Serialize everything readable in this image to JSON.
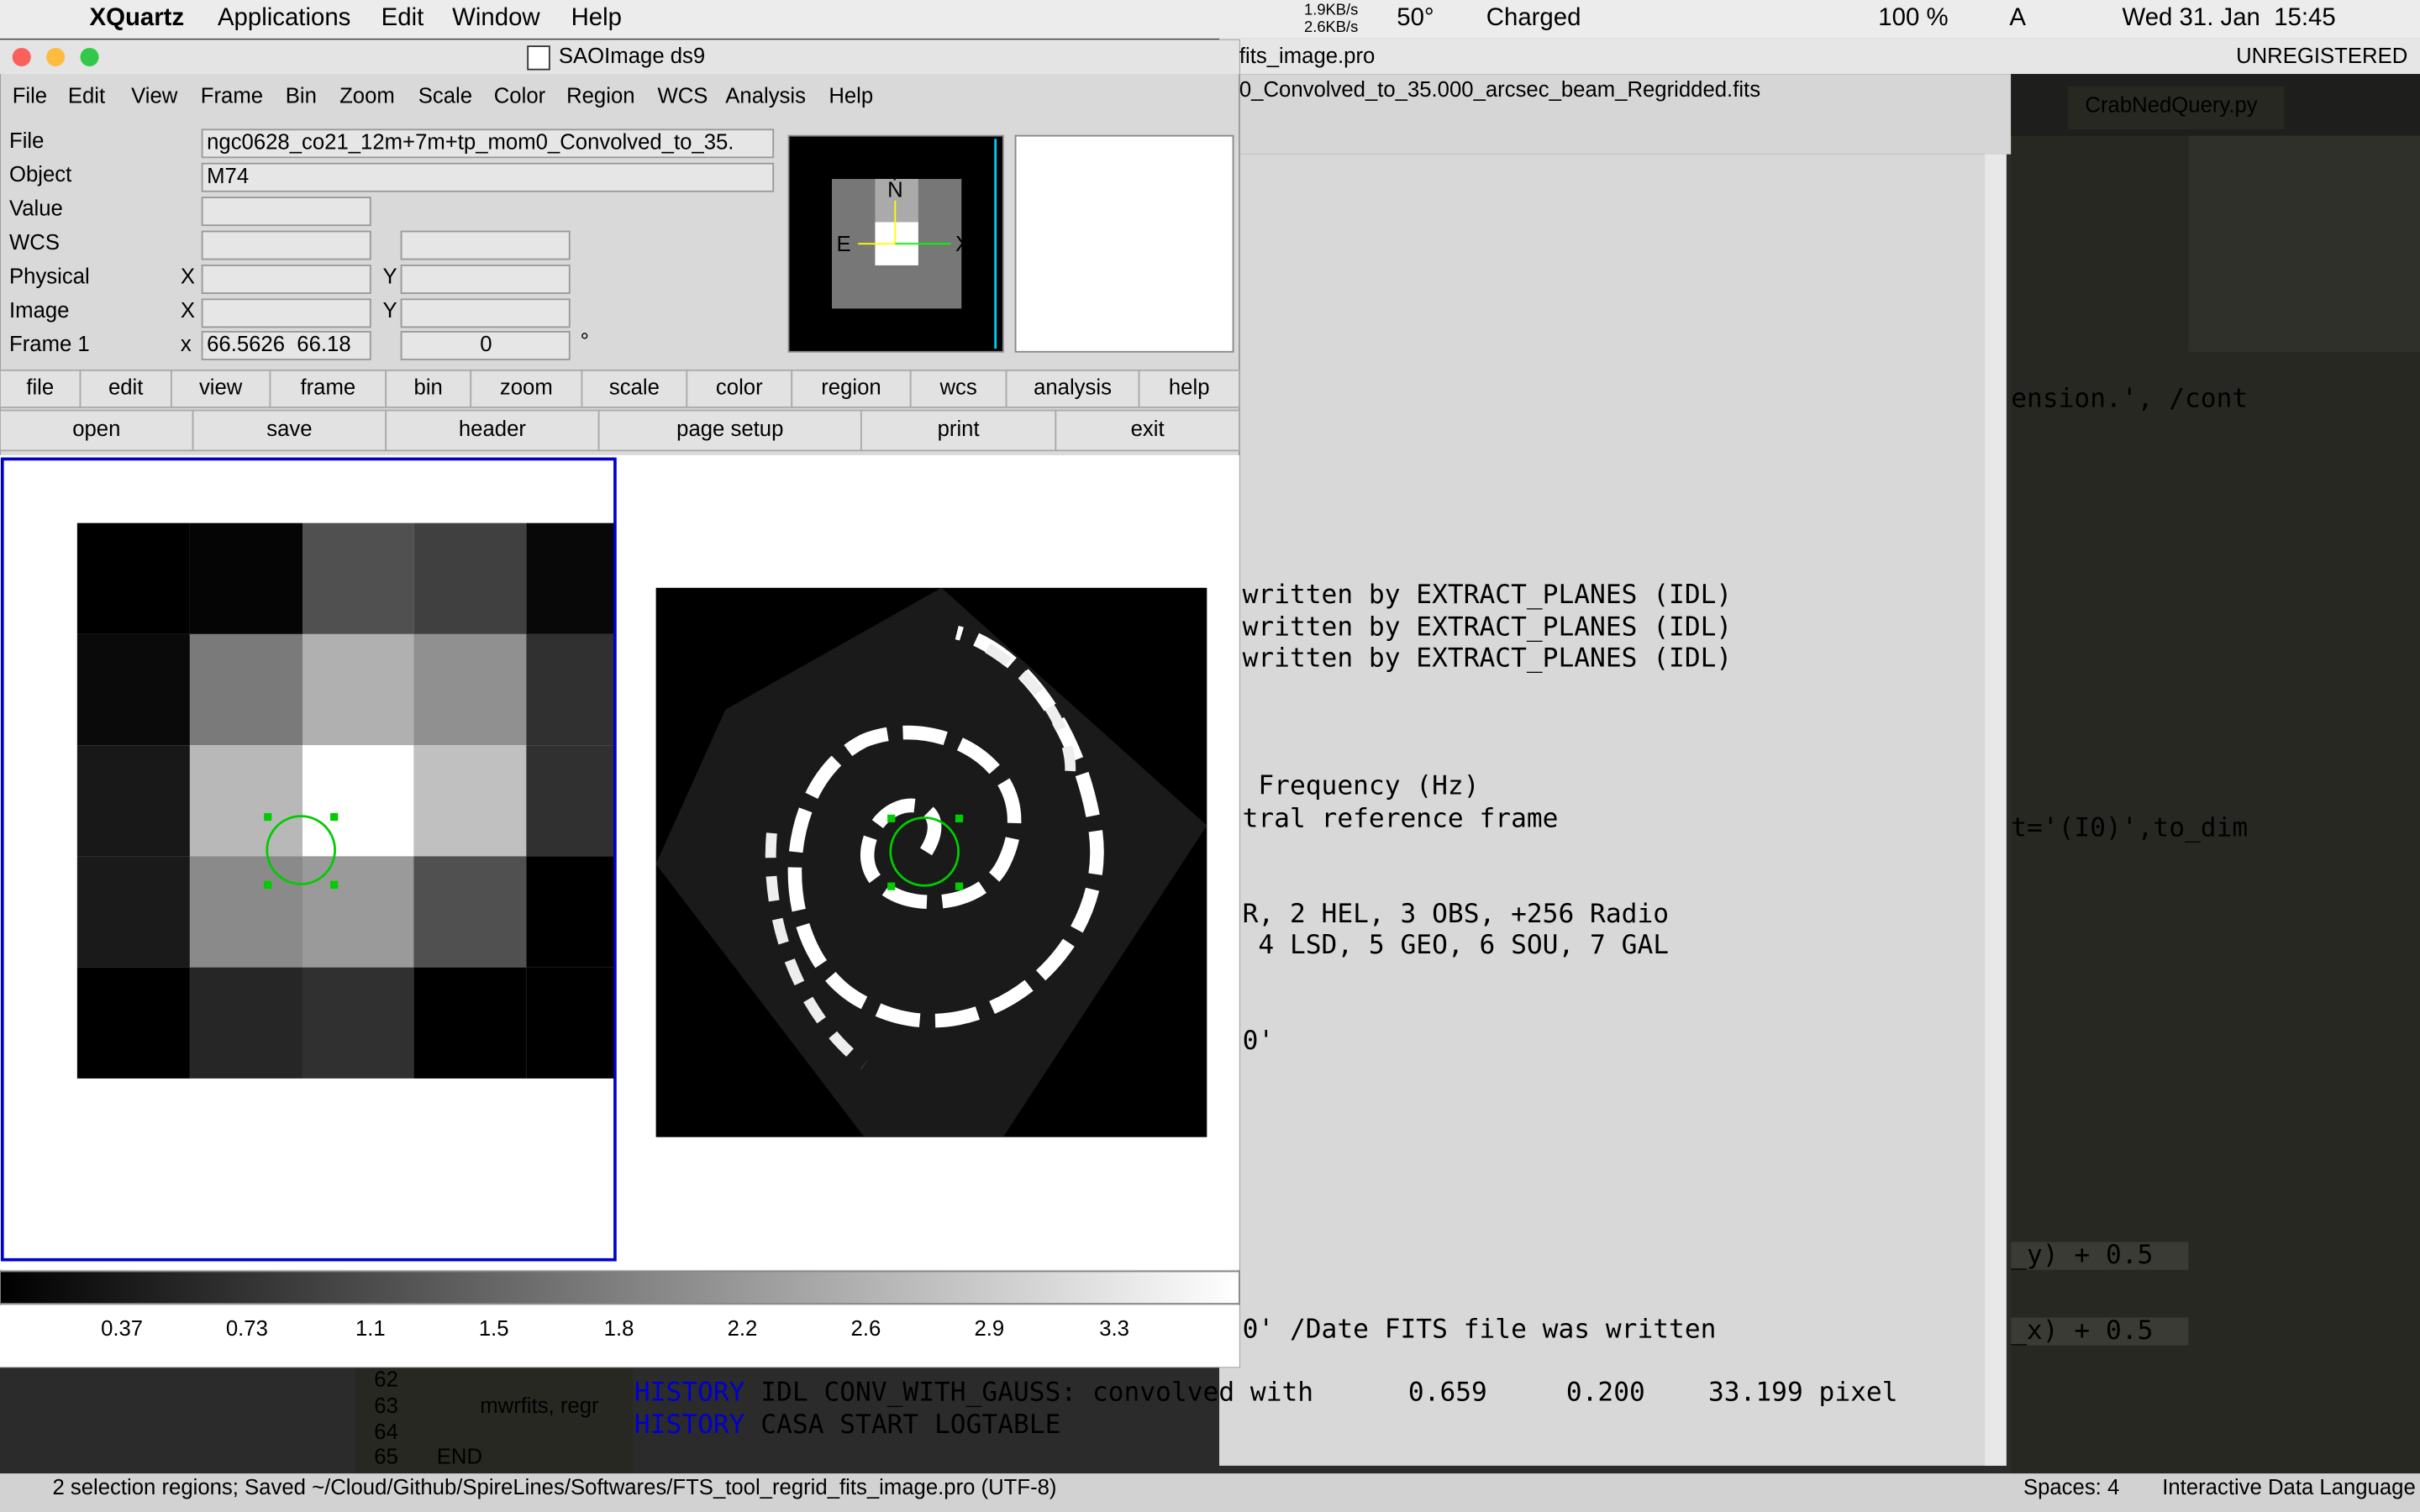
{
  "menubar": {
    "app": "XQuartz",
    "menus": [
      "Applications",
      "Edit",
      "Window",
      "Help"
    ],
    "net_up": "1.9KB/s",
    "net_down": "2.6KB/s",
    "temperature": "50°",
    "battery_status": "Charged",
    "battery": "100 %",
    "input": "A",
    "clock": "Wed 31. Jan  15:45"
  },
  "ds9": {
    "title": "SAOImage ds9",
    "menus": [
      "File",
      "Edit",
      "View",
      "Frame",
      "Bin",
      "Zoom",
      "Scale",
      "Color",
      "Region",
      "WCS",
      "Analysis",
      "Help"
    ],
    "labels": [
      "File",
      "Object",
      "Value",
      "WCS",
      "Physical",
      "Image",
      "Frame 1"
    ],
    "file": "ngc0628_co21_12m+7m+tp_mom0_Convolved_to_35.",
    "object": "M74",
    "axis_x": "X",
    "axis_y": "Y",
    "frame_axis": "x",
    "frame_coords": "66.5626  66.18",
    "frame_angle": "0",
    "degree": "°",
    "panner": {
      "north": "N",
      "east": "E",
      "x": "X",
      "y": "Y"
    },
    "buttons": [
      "file",
      "edit",
      "view",
      "frame",
      "bin",
      "zoom",
      "scale",
      "color",
      "region",
      "wcs",
      "analysis",
      "help"
    ],
    "file_buttons": [
      "open",
      "save",
      "header",
      "page setup",
      "print",
      "exit"
    ],
    "colorbar_ticks": [
      "0.37",
      "0.73",
      "1.1",
      "1.5",
      "1.8",
      "2.2",
      "2.6",
      "2.9",
      "3.3"
    ]
  },
  "editor": {
    "tab_title": "fits_image.pro",
    "license": "UNREGISTERED",
    "header_tab": "0_Convolved_to_35.000_arcsec_beam_Regridded.fits",
    "lines": [
      "written by EXTRACT_PLANES (IDL)",
      "written by EXTRACT_PLANES (IDL)",
      "written by EXTRACT_PLANES (IDL)",
      " Frequency (Hz)",
      "tral reference frame",
      "R, 2 HEL, 3 OBS, +256 Radio",
      " 4 LSD, 5 GEO, 6 SOU, 7 GAL",
      "0'",
      "0' /Date FITS file was written"
    ],
    "history": [
      {
        "keyword": "HISTORY",
        "text": " IDL CONV_WITH_GAUSS: convolved with      0.659     0.200    33.199 pixel"
      },
      {
        "keyword": "HISTORY",
        "text": " CASA START LOGTABLE"
      }
    ],
    "side_tab": "CrabNedQuery.py",
    "side_code": [
      "ension.', /cont",
      "t='(I0)',to_dim",
      "_y) + 0.5",
      "_x) + 0.5"
    ],
    "line_numbers": [
      "62",
      "63",
      "64",
      "65"
    ],
    "code": [
      "mwrfits, regr",
      "END"
    ]
  },
  "statusbar": {
    "message": "2 selection regions; Saved ~/Cloud/Github/SpireLines/Softwares/FTS_tool_regrid_fits_image.pro (UTF-8)",
    "spaces": "Spaces: 4",
    "syntax": "Interactive Data Language"
  }
}
